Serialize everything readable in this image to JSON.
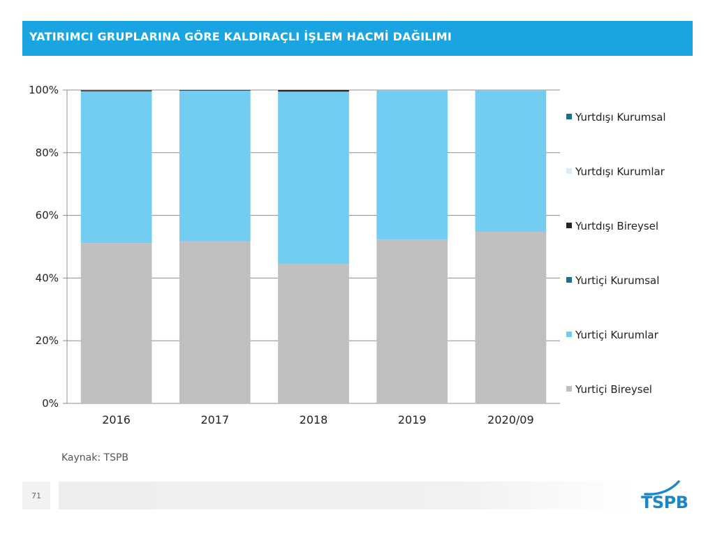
{
  "header": {
    "title": "YATIRIMCI GRUPLARINA GÖRE KALDIRAÇLI İŞLEM HACMİ DAĞILIMI"
  },
  "chart_data": {
    "type": "bar",
    "stacked": true,
    "categories": [
      "2016",
      "2017",
      "2018",
      "2019",
      "2020/09"
    ],
    "series": [
      {
        "name": "Yurtiçi Bireysel",
        "color": "#bfbfbf",
        "values": [
          51.2,
          51.7,
          44.5,
          52.3,
          54.8
        ]
      },
      {
        "name": "Yurtiçi Kurumlar",
        "color": "#72cdf0",
        "values": [
          48.4,
          48.2,
          55.0,
          47.7,
          45.2
        ]
      },
      {
        "name": "Yurtiçi Kurumsal",
        "color": "#1f6e93",
        "values": [
          0,
          0,
          0,
          0,
          0
        ]
      },
      {
        "name": "Yurtdışı Bireysel",
        "color": "#262626",
        "values": [
          0.3,
          0.1,
          0.5,
          0,
          0
        ]
      },
      {
        "name": "Yurtdışı Kurumlar",
        "color": "#d6ecfa",
        "values": [
          0,
          0,
          0,
          0,
          0
        ]
      },
      {
        "name": "Yurtdışı Kurumsal",
        "color": "#1f6e93",
        "values": [
          0.1,
          0,
          0,
          0,
          0
        ]
      }
    ],
    "y_ticks": [
      "0%",
      "20%",
      "40%",
      "60%",
      "80%",
      "100%"
    ],
    "ylim": [
      0,
      100
    ],
    "grid": true,
    "legend": "right"
  },
  "footer": {
    "source": "Kaynak: TSPB",
    "page_number": "71",
    "logo_text": "TSPB"
  }
}
